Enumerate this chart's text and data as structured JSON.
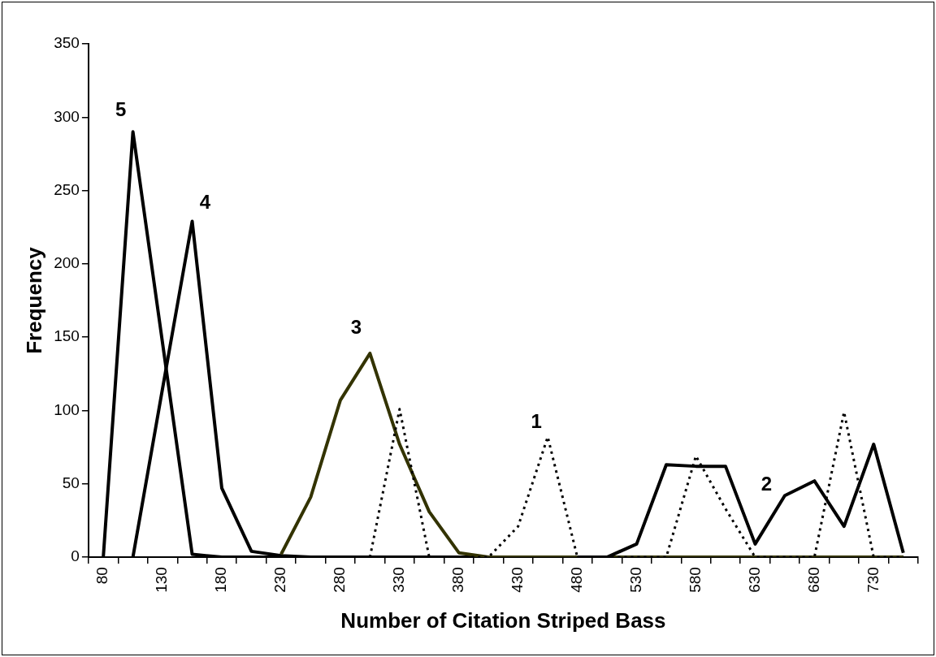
{
  "chart_data": {
    "type": "line",
    "xlabel": "Number of Citation Striped Bass",
    "ylabel": "Frequency",
    "categories": [
      "80",
      null,
      "130",
      null,
      "180",
      null,
      "230",
      null,
      "280",
      null,
      "330",
      null,
      "380",
      null,
      "430",
      null,
      "480",
      null,
      "530",
      null,
      "580",
      null,
      "630",
      null,
      "680",
      null,
      "730",
      null
    ],
    "ylim": [
      0,
      350
    ],
    "yticks": [
      0,
      50,
      100,
      150,
      200,
      250,
      300,
      350
    ],
    "grid": false,
    "legend": false,
    "marker": "none",
    "series": [
      {
        "name": "1",
        "color": "#000000",
        "line_style": "dotted",
        "values": [
          null,
          null,
          null,
          null,
          null,
          null,
          null,
          null,
          null,
          0,
          101,
          0,
          0,
          0,
          21,
          82,
          0,
          0,
          0,
          0,
          69,
          33,
          0,
          0,
          0,
          99,
          0,
          0
        ]
      },
      {
        "name": "2",
        "color": "#000000",
        "line_style": "solid",
        "values": [
          null,
          null,
          null,
          null,
          null,
          null,
          null,
          null,
          null,
          null,
          null,
          null,
          null,
          null,
          null,
          null,
          0,
          0,
          9,
          63,
          62,
          62,
          9,
          42,
          52,
          21,
          77,
          3
        ]
      },
      {
        "name": "3",
        "color": "#333300",
        "line_style": "solid",
        "values": [
          null,
          null,
          null,
          null,
          null,
          null,
          2,
          41,
          107,
          139,
          77,
          31,
          3,
          0,
          0,
          0,
          0,
          0,
          0,
          0,
          0,
          0,
          0,
          0,
          0,
          0,
          0,
          0
        ]
      },
      {
        "name": "4",
        "color": "#000000",
        "line_style": "solid",
        "values": [
          null,
          0,
          115,
          229,
          47,
          4,
          1,
          0,
          0,
          0,
          0,
          0,
          0,
          0,
          0,
          0,
          0,
          0,
          0,
          0,
          0,
          0,
          0,
          0,
          0,
          0,
          0,
          0
        ]
      },
      {
        "name": "5",
        "color": "#000000",
        "line_style": "solid",
        "values": [
          0,
          290,
          146,
          2,
          0,
          0,
          0,
          0,
          0,
          0,
          0,
          0,
          0,
          0,
          0,
          0,
          0,
          0,
          0,
          0,
          0,
          0,
          0,
          0,
          0,
          0,
          0,
          0
        ]
      }
    ]
  }
}
